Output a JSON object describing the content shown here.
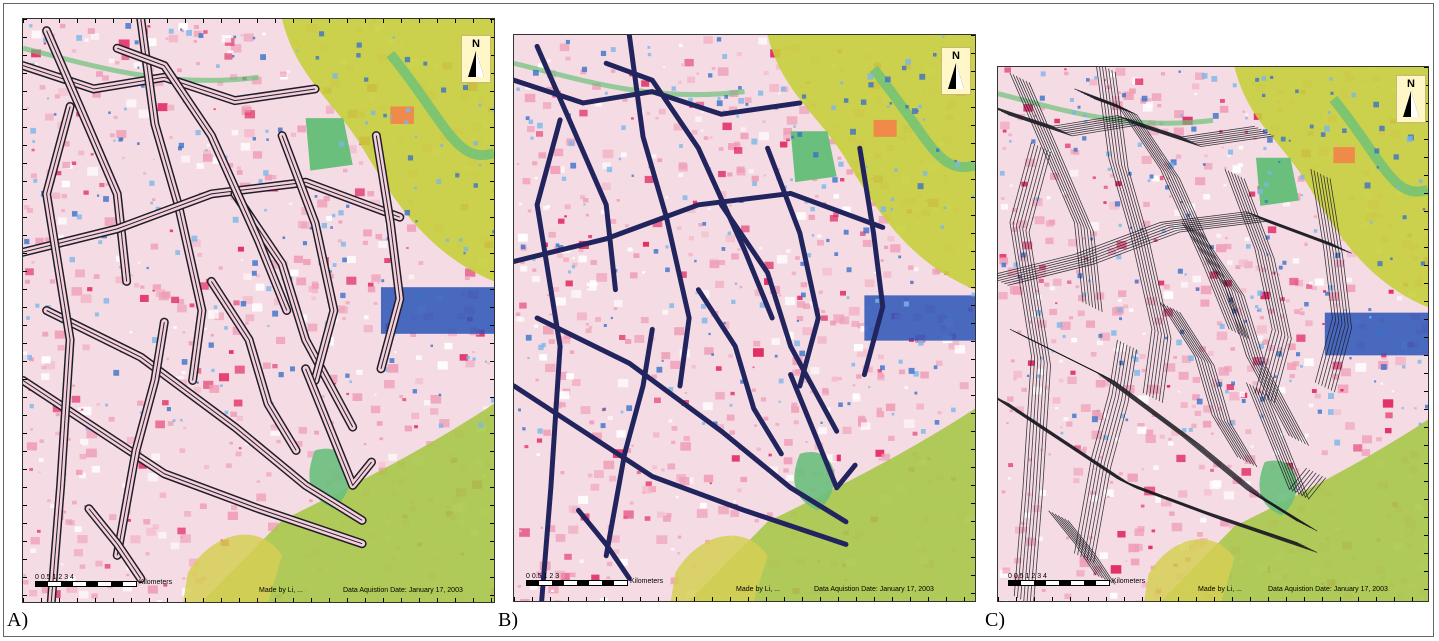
{
  "panels": [
    {
      "id": "A",
      "label": "A)",
      "scale_ticks": "0  0.5 1       2       3       4",
      "scale_unit": "Kilometers",
      "credit": "Made by Li, ...",
      "date": "Data Aquistion Date: January 17, 2003",
      "north": "N",
      "line_color": "#1e1e2a"
    },
    {
      "id": "B",
      "label": "B)",
      "scale_ticks": "0  0.5 1       2       3",
      "scale_unit": "Kilometers",
      "credit": "Made by Li, ...",
      "date": "Data Aquistion Date: January 17, 2003",
      "north": "N",
      "line_color": "#22245e"
    },
    {
      "id": "C",
      "label": "C)",
      "scale_ticks": "0  0.5 1       2       3       4",
      "scale_unit": "Kilometers",
      "credit": "Made by Li, ...",
      "date": "Data Aquistion Date: January 17, 2003",
      "north": "N",
      "line_color": "#1a1a22"
    }
  ],
  "colors": {
    "urban_pink": "#ef9fb8",
    "dense_red": "#e1245e",
    "water_blue": "#2a55b8",
    "vegetation_green": "#a9c84a",
    "park_green": "#6bbf7c",
    "yellow_green": "#c8cf3c"
  }
}
